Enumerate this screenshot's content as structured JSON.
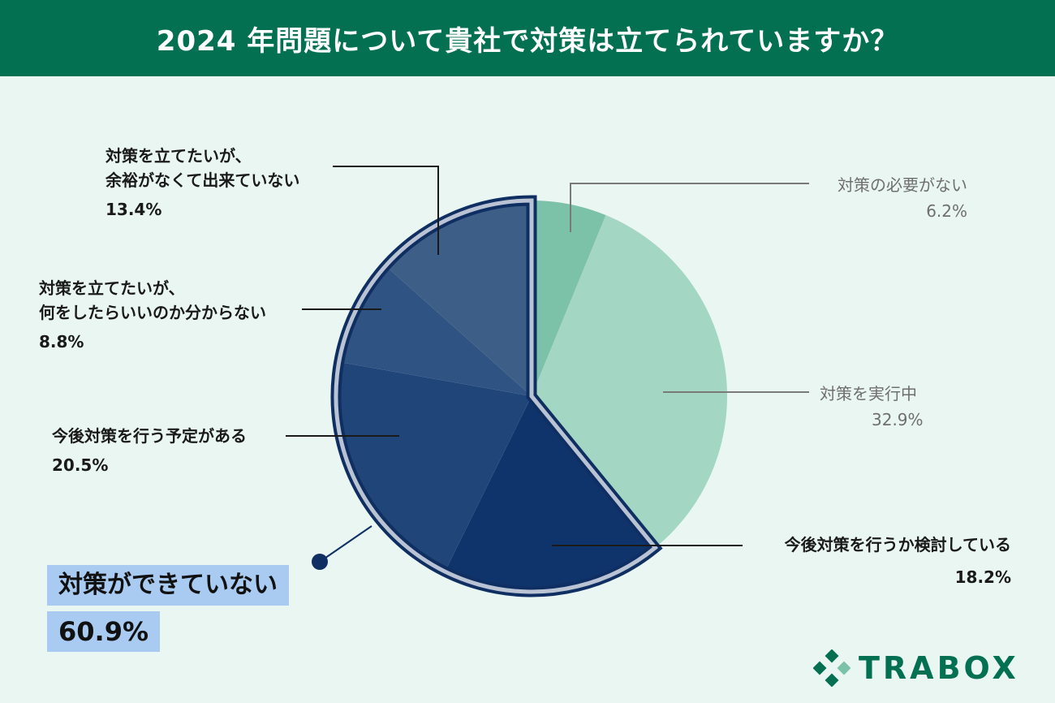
{
  "header": {
    "title": "2024 年問題について貴社で対策は立てられていますか？"
  },
  "chart_data": {
    "type": "pie",
    "title": "2024 年問題について貴社で対策は立てられていますか？",
    "start_angle": "12 o'clock, clockwise",
    "slices": [
      {
        "label": "対策の必要がない",
        "value": 6.2,
        "value_text": "6.2%",
        "color": "#7cc2a8"
      },
      {
        "label": "対策を実行中",
        "value": 32.9,
        "value_text": "32.9%",
        "color": "#a3d6c3"
      },
      {
        "label": "今後対策を行うか検討している",
        "value": 18.2,
        "value_text": "18.2%",
        "color": "#0f346b"
      },
      {
        "label": "今後対策を行う予定がある",
        "value": 20.5,
        "value_text": "20.5%",
        "color": "#1f4579"
      },
      {
        "label_lines": [
          "対策を立てたいが、",
          "何をしたらいいのか分からない"
        ],
        "value": 8.8,
        "value_text": "8.8%",
        "color": "#2f5382"
      },
      {
        "label_lines": [
          "対策を立てたいが、",
          "余裕がなくて出来ていない"
        ],
        "value": 13.4,
        "value_text": "13.4%",
        "color": "#3d5e86"
      }
    ],
    "highlight": {
      "label": "対策ができていない",
      "value": 60.9,
      "value_text": "60.9%",
      "border_color": "#0f2f63",
      "box_color": "#a9cbf1"
    }
  },
  "logo": {
    "text": "TRABOX",
    "color": "#037052"
  }
}
